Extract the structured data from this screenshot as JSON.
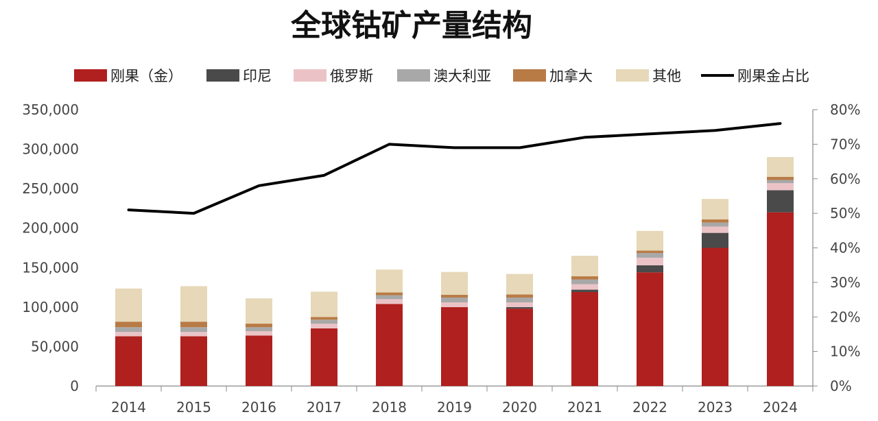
{
  "chart_data": {
    "type": "bar",
    "title": "全球钴矿产量结构",
    "categories": [
      "2014",
      "2015",
      "2016",
      "2017",
      "2018",
      "2019",
      "2020",
      "2021",
      "2022",
      "2023",
      "2024"
    ],
    "stacked": true,
    "ylim": [
      0,
      350000
    ],
    "y2lim": [
      0,
      0.8
    ],
    "yticks": [
      "0",
      "50,000",
      "100,000",
      "150,000",
      "200,000",
      "250,000",
      "300,000",
      "350,000"
    ],
    "y2ticks": [
      "0%",
      "10%",
      "20%",
      "30%",
      "40%",
      "50%",
      "60%",
      "70%",
      "80%"
    ],
    "legend_position": "top",
    "grid": false,
    "series": [
      {
        "name": "刚果（金）",
        "kind": "bar",
        "color": "#B0201E",
        "values": [
          63000,
          63000,
          64000,
          73000,
          104000,
          100000,
          98000,
          119000,
          144000,
          175000,
          220000
        ]
      },
      {
        "name": "印尼",
        "kind": "bar",
        "color": "#4A4A4A",
        "values": [
          0,
          0,
          0,
          0,
          0,
          0,
          2000,
          3000,
          9000,
          19000,
          28000
        ]
      },
      {
        "name": "俄罗斯",
        "kind": "bar",
        "color": "#EBC3C6",
        "values": [
          5500,
          5500,
          5500,
          6000,
          6000,
          6000,
          6000,
          7000,
          9500,
          8000,
          9000
        ]
      },
      {
        "name": "澳大利亚",
        "kind": "bar",
        "color": "#A8A8A8",
        "values": [
          6000,
          6000,
          5000,
          5000,
          5000,
          6000,
          6000,
          6000,
          6000,
          5000,
          4000
        ]
      },
      {
        "name": "加拿大",
        "kind": "bar",
        "color": "#B97B46",
        "values": [
          7000,
          7000,
          4500,
          3500,
          3500,
          3500,
          4000,
          4000,
          3000,
          4000,
          4000
        ]
      },
      {
        "name": "其他",
        "kind": "bar",
        "color": "#E6D8B8",
        "values": [
          42000,
          45000,
          32000,
          32000,
          29000,
          29000,
          26000,
          26000,
          25000,
          26000,
          25000
        ]
      },
      {
        "name": "刚果金占比",
        "kind": "line",
        "axis": "right",
        "color": "#000000",
        "values": [
          0.51,
          0.5,
          0.58,
          0.61,
          0.7,
          0.69,
          0.69,
          0.72,
          0.73,
          0.74,
          0.76
        ]
      }
    ]
  }
}
